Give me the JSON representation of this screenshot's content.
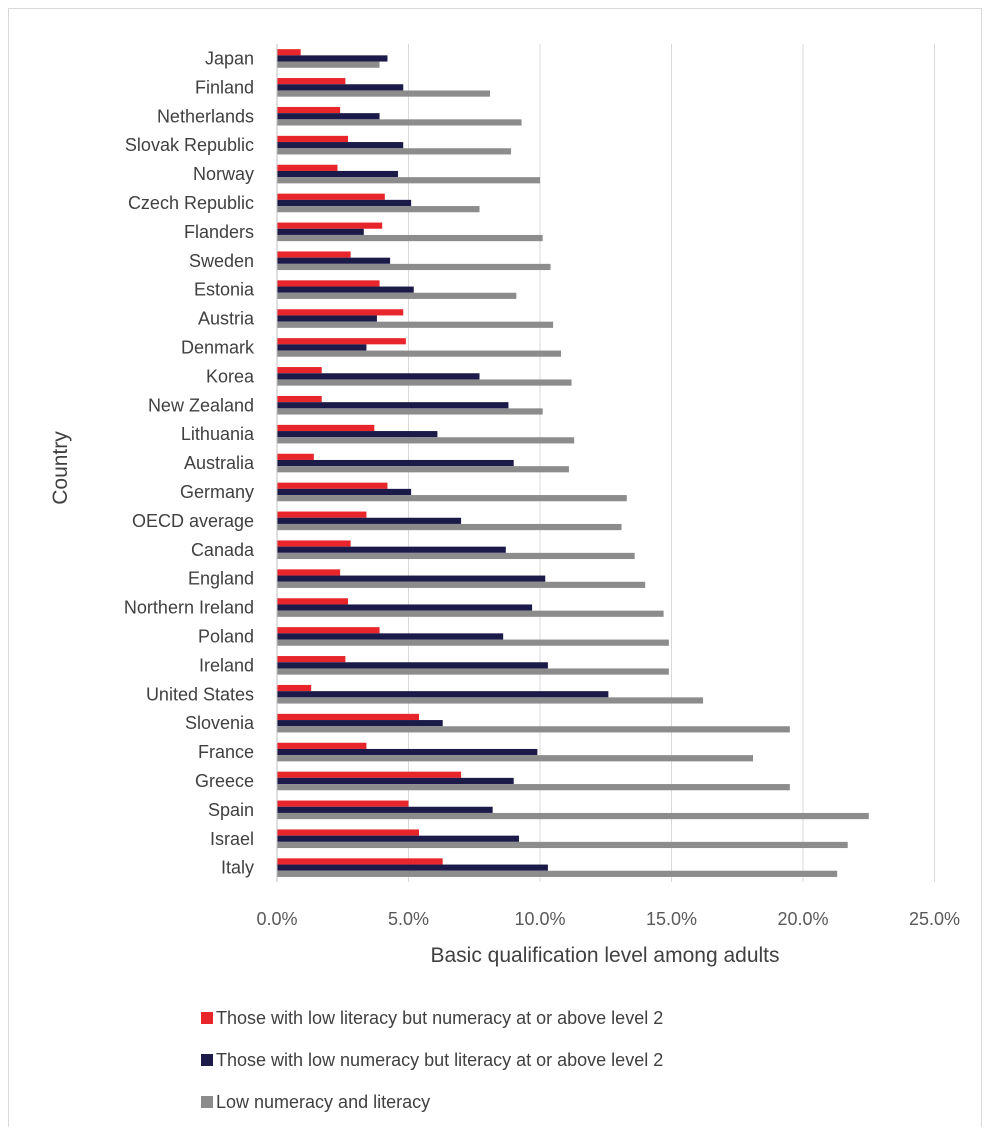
{
  "chart_data": {
    "type": "bar",
    "orientation": "horizontal",
    "xlabel": "Basic qualification level among adults",
    "ylabel": "Country",
    "xlim": [
      0,
      25
    ],
    "x_ticks": [
      "0.0%",
      "5.0%",
      "10.0%",
      "15.0%",
      "20.0%",
      "25.0%"
    ],
    "grid": "vertical gridlines",
    "legend_position": "bottom",
    "categories": [
      "Japan",
      "Finland",
      "Netherlands",
      "Slovak Republic",
      "Norway",
      "Czech Republic",
      "Flanders",
      "Sweden",
      "Estonia",
      "Austria",
      "Denmark",
      "Korea",
      "New Zealand",
      "Lithuania",
      "Australia",
      "Germany",
      "OECD average",
      "Canada",
      "England",
      "Northern Ireland",
      "Poland",
      "Ireland",
      "United States",
      "Slovenia",
      "France",
      "Greece",
      "Spain",
      "Israel",
      "Italy"
    ],
    "series": [
      {
        "name": "Those with low literacy but numeracy at or above level 2",
        "color": "#e8252b",
        "values": [
          0.9,
          2.6,
          2.4,
          2.7,
          2.3,
          4.1,
          4.0,
          2.8,
          3.9,
          4.8,
          4.9,
          1.7,
          1.7,
          3.7,
          1.4,
          4.2,
          3.4,
          2.8,
          2.4,
          2.7,
          3.9,
          2.6,
          1.3,
          5.4,
          3.4,
          7.0,
          5.0,
          5.4,
          6.3
        ]
      },
      {
        "name": "Those with low numeracy but literacy at or above level 2",
        "color": "#1c1a49",
        "values": [
          4.2,
          4.8,
          3.9,
          4.8,
          4.6,
          5.1,
          3.3,
          4.3,
          5.2,
          3.8,
          3.4,
          7.7,
          8.8,
          6.1,
          9.0,
          5.1,
          7.0,
          8.7,
          10.2,
          9.7,
          8.6,
          10.3,
          12.6,
          6.3,
          9.9,
          9.0,
          8.2,
          9.2,
          10.3
        ]
      },
      {
        "name": "Low numeracy and literacy",
        "color": "#8c8c8c",
        "values": [
          3.9,
          8.1,
          9.3,
          8.9,
          10.0,
          7.7,
          10.1,
          10.4,
          9.1,
          10.5,
          10.8,
          11.2,
          10.1,
          11.3,
          11.1,
          13.3,
          13.1,
          13.6,
          14.0,
          14.7,
          14.9,
          14.9,
          16.2,
          19.5,
          18.1,
          19.5,
          22.5,
          21.7,
          21.3
        ]
      }
    ]
  }
}
